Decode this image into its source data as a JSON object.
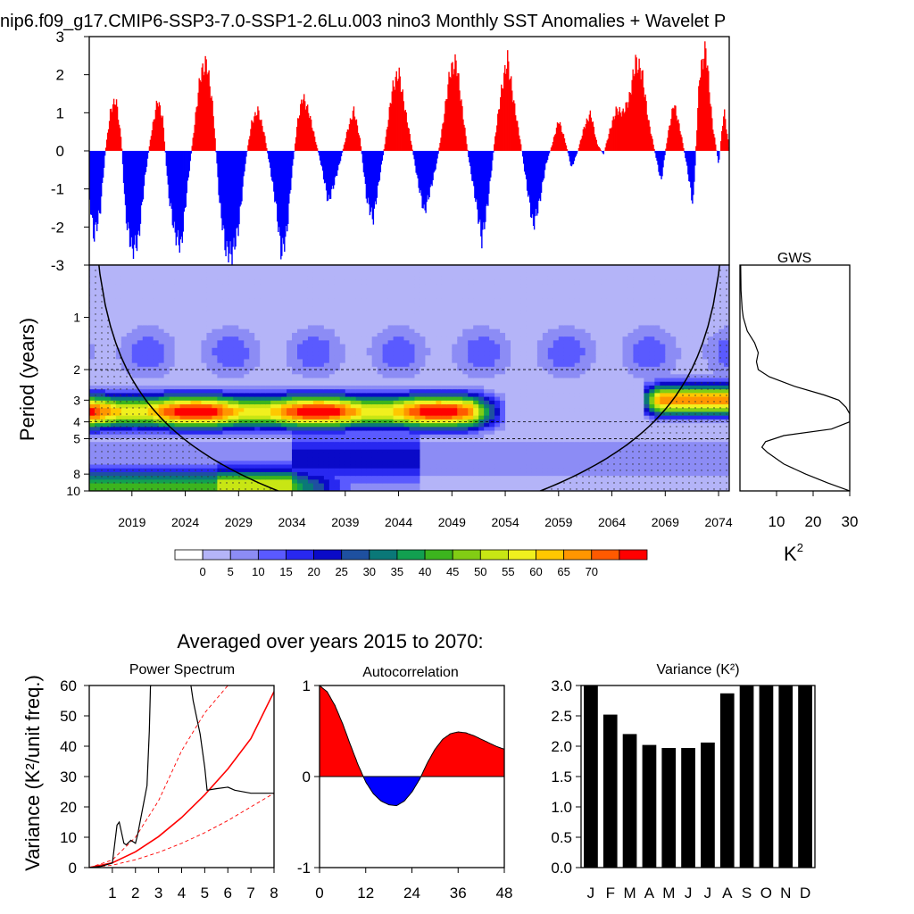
{
  "chart_data": [
    {
      "id": "sst",
      "type": "bar",
      "title": "nip6.f09_g17.CMIP6-SSP3-7.0-SSP1-2.6Lu.003 nino3 Monthly SST Anomalies + Wavelet P",
      "ylim": [
        -3,
        3
      ],
      "yticks": [
        "3",
        "2",
        "1",
        "0",
        "-1",
        "-2",
        "-3"
      ],
      "xlim": [
        2015,
        2075
      ],
      "positive_color": "#ff0000",
      "negative_color": "#0000ff",
      "envelope_years": [
        2015.0,
        2015.4,
        2016.0,
        2016.5,
        2017.0,
        2017.5,
        2018.0,
        2018.4,
        2019.0,
        2019.6,
        2020.2,
        2020.8,
        2021.4,
        2021.9,
        2022.4,
        2023.0,
        2023.6,
        2024.2,
        2024.8,
        2025.4,
        2026.0,
        2026.6,
        2027.2,
        2027.8,
        2028.4,
        2029.0,
        2029.6,
        2030.2,
        2030.8,
        2031.4,
        2032.0,
        2032.5,
        2033.0,
        2033.5,
        2034.0,
        2034.5,
        2035.0,
        2035.6,
        2036.2,
        2036.8,
        2037.4,
        2038.0,
        2038.6,
        2039.2,
        2039.8,
        2040.4,
        2041.0,
        2041.6,
        2042.2,
        2042.8,
        2043.4,
        2044.0,
        2044.6,
        2045.2,
        2045.8,
        2046.4,
        2047.0,
        2047.6,
        2048.2,
        2048.8,
        2049.4,
        2050.0,
        2050.6,
        2051.2,
        2051.8,
        2052.4,
        2053.0,
        2053.6,
        2054.2,
        2054.8,
        2055.4,
        2056.0,
        2056.6,
        2057.2,
        2057.8,
        2058.4,
        2059.0,
        2059.6,
        2060.2,
        2060.8,
        2061.4,
        2062.0,
        2062.6,
        2063.2,
        2063.8,
        2064.4,
        2065.0,
        2065.6,
        2066.2,
        2066.8,
        2067.4,
        2068.0,
        2068.6,
        2069.2,
        2069.8,
        2070.4,
        2071.0,
        2071.6,
        2072.2,
        2072.8,
        2073.4,
        2074.0,
        2074.5,
        2075.0
      ],
      "envelope_values": [
        -1.3,
        -2.5,
        -1.8,
        0.0,
        1.2,
        1.5,
        0.3,
        -1.9,
        -2.9,
        -2.6,
        -0.8,
        0.5,
        1.5,
        0.9,
        -1.2,
        -2.4,
        -2.8,
        -1.0,
        0.6,
        2.2,
        2.6,
        1.2,
        -1.5,
        -2.9,
        -3.0,
        -2.2,
        -0.4,
        0.8,
        1.2,
        0.5,
        -0.6,
        -1.6,
        -3.0,
        -2.4,
        -0.6,
        0.8,
        1.6,
        1.1,
        0.3,
        -0.5,
        -1.5,
        -0.9,
        -0.2,
        0.6,
        1.2,
        0.3,
        -1.4,
        -2.0,
        -0.8,
        0.4,
        1.8,
        2.3,
        1.2,
        0.2,
        -0.9,
        -1.8,
        -1.1,
        -0.3,
        0.9,
        2.3,
        2.6,
        1.1,
        -0.3,
        -1.4,
        -2.6,
        -1.4,
        0.3,
        1.7,
        2.7,
        1.4,
        0.3,
        -1.0,
        -2.2,
        -1.5,
        -0.4,
        0.2,
        0.9,
        0.3,
        -0.5,
        0.0,
        0.7,
        1.1,
        0.2,
        -0.1,
        0.6,
        1.2,
        1.1,
        1.5,
        2.6,
        2.3,
        0.9,
        0.0,
        -0.9,
        0.4,
        1.4,
        0.6,
        -0.4,
        -1.6,
        2.2,
        3.0,
        0.8,
        -0.4,
        1.2,
        0.0
      ]
    },
    {
      "id": "wavelet",
      "type": "heatmap",
      "ylabel": "Period (years)",
      "yticks": [
        "1",
        "2",
        "3",
        "4",
        "5",
        "8",
        "10"
      ],
      "xticks": [
        "2019",
        "2024",
        "2029",
        "2034",
        "2039",
        "2044",
        "2049",
        "2054",
        "2059",
        "2064",
        "2069",
        "2074"
      ],
      "reference_periods": [
        2,
        4,
        5
      ],
      "colorbar_labels": [
        "0",
        "5",
        "10",
        "15",
        "20",
        "25",
        "30",
        "35",
        "40",
        "45",
        "50",
        "55",
        "60",
        "65",
        "70"
      ],
      "colorbar_colors": [
        "#ffffff",
        "#b4b4f8",
        "#8c8cf5",
        "#5a5aff",
        "#2828f0",
        "#0a0ac8",
        "#1e50a0",
        "#0a7878",
        "#12a050",
        "#3cb41e",
        "#82cd14",
        "#c8e614",
        "#f0f01e",
        "#ffc800",
        "#ff9600",
        "#ff5a00",
        "#ff0000"
      ],
      "bands": [
        {
          "name": "enso-core",
          "period": 3.5,
          "level": 70,
          "start": 2015,
          "end": 2054
        },
        {
          "name": "late-core",
          "period": 3.0,
          "level": 70,
          "start": 2068,
          "end": 2075
        },
        {
          "name": "decadal-low",
          "period": 9.5,
          "level": 50,
          "start": 2015,
          "end": 2038
        }
      ]
    },
    {
      "id": "gws",
      "type": "line",
      "title": "GWS",
      "xticks": [
        "10",
        "20",
        "30"
      ],
      "xlim": [
        0,
        30
      ],
      "xlabel": "K",
      "xlabel_superscript": "2",
      "periods": [
        0.5,
        0.7,
        0.9,
        1.0,
        1.2,
        1.4,
        1.6,
        1.8,
        2.0,
        2.2,
        2.5,
        2.8,
        3.0,
        3.3,
        3.6,
        4.0,
        4.4,
        4.8,
        5.2,
        5.6,
        6.0,
        7.0,
        8.0,
        9.0,
        10.0
      ],
      "values": [
        0.2,
        0.3,
        0.6,
        0.9,
        2.0,
        4.0,
        5.0,
        4.5,
        5.0,
        8.0,
        15.0,
        23.0,
        27.0,
        29.0,
        30.0,
        30.0,
        25.0,
        12.0,
        7.0,
        6.0,
        7.5,
        12.0,
        18.0,
        24.0,
        30.0
      ]
    },
    {
      "id": "power",
      "type": "line",
      "suptitle": "Averaged over years 2015 to 2070:",
      "title": "Power Spectrum",
      "ylabel": "Variance (K²/unit freq.)",
      "ylim": [
        0,
        60
      ],
      "xlim": [
        0,
        8
      ],
      "yticks": [
        "60",
        "50",
        "40",
        "30",
        "20",
        "10",
        "0"
      ],
      "xticks": [
        "1",
        "2",
        "3",
        "4",
        "5",
        "6",
        "7",
        "8"
      ],
      "x": [
        0.0,
        0.5,
        1.0,
        1.2,
        1.3,
        1.5,
        1.6,
        1.8,
        2.0,
        2.1,
        2.3,
        2.5,
        2.6,
        2.65,
        2.7
      ],
      "values": [
        0.0,
        0.4,
        1.5,
        14.0,
        15.0,
        8.0,
        7.5,
        9.0,
        8.0,
        11.0,
        19.0,
        27.0,
        45.0,
        60.0,
        60.0
      ],
      "x2": [
        4.4,
        4.5,
        4.8,
        5.0,
        5.1,
        5.5,
        6.0,
        6.3,
        7.0,
        8.0
      ],
      "values2": [
        60.0,
        55.0,
        44.0,
        33.0,
        25.5,
        26.0,
        26.5,
        25.5,
        24.5,
        24.5
      ],
      "significance_x": [
        0,
        1,
        2,
        3,
        4,
        5,
        6,
        7,
        8
      ],
      "significance": [
        0.0,
        1.6,
        5.2,
        10.2,
        16.5,
        24.0,
        32.5,
        42.5,
        58.0
      ],
      "upper_bound": [
        0.0,
        2.5,
        10.0,
        22.0,
        38.5,
        51.0,
        60.0,
        60.0,
        60.0
      ],
      "lower_bound": [
        0.0,
        0.8,
        2.6,
        5.0,
        8.0,
        11.5,
        15.5,
        20.0,
        24.5
      ]
    },
    {
      "id": "autocorr",
      "type": "area",
      "title": "Autocorrelation",
      "ylim": [
        -1,
        1
      ],
      "xlim": [
        0,
        48
      ],
      "yticks": [
        "1",
        "0",
        "-1"
      ],
      "xticks": [
        "0",
        "12",
        "24",
        "36",
        "48"
      ],
      "x": [
        0,
        2,
        4,
        6,
        8,
        10,
        12,
        14,
        16,
        18,
        20,
        22,
        24,
        26,
        28,
        30,
        32,
        34,
        36,
        38,
        40,
        42,
        44,
        46,
        48
      ],
      "values": [
        1.0,
        0.93,
        0.78,
        0.58,
        0.35,
        0.13,
        -0.06,
        -0.19,
        -0.27,
        -0.31,
        -0.32,
        -0.27,
        -0.17,
        -0.03,
        0.15,
        0.3,
        0.41,
        0.47,
        0.49,
        0.48,
        0.45,
        0.41,
        0.37,
        0.33,
        0.3
      ]
    },
    {
      "id": "variance",
      "type": "bar",
      "title": "Variance (K²)",
      "ylim": [
        0,
        3
      ],
      "yticks": [
        "3.0",
        "2.5",
        "2.0",
        "1.5",
        "1.0",
        "0.5",
        "0.0"
      ],
      "categories": [
        "J",
        "F",
        "M",
        "A",
        "M",
        "J",
        "J",
        "A",
        "S",
        "O",
        "N",
        "D"
      ],
      "values": [
        3.0,
        2.52,
        2.2,
        2.02,
        1.97,
        1.97,
        2.06,
        2.87,
        3.0,
        3.0,
        3.0,
        3.0
      ]
    }
  ]
}
